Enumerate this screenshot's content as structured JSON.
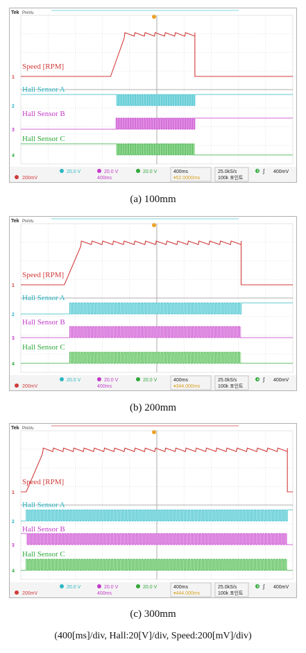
{
  "panels": [
    {
      "caption": "(a)  100mm",
      "brand": "Tek",
      "mode": "PreVu",
      "trace_labels": {
        "speed": "Speed [RPM]",
        "a": "Hall Sensor A",
        "b": "Hall Sensor B",
        "c": "Hall Sensor C"
      },
      "channel_markers": [
        "1",
        "2",
        "3",
        "4"
      ],
      "status": {
        "ch1": "200mV",
        "ch2": "20.0 V",
        "ch3": "20.0 V",
        "ch4": "20.0 V",
        "timebase": "400ms",
        "timebase2": "400ms",
        "trigger_pos": "▾52.0000ms",
        "rate": "25.0kS/s",
        "record": "100k 포인트",
        "trig_ch": "4",
        "trig_slope": "∫",
        "trig_level": "400mV"
      },
      "chart_data": {
        "type": "line",
        "time_range_divs": [
          0,
          10
        ],
        "speed": {
          "rise_start": 3.3,
          "rise_end": 3.8,
          "end": 6.4,
          "low_level": 0.1,
          "high_level": 1.0,
          "ripple_count": 7
        },
        "hall_a": {
          "start": 3.5,
          "end": 6.4,
          "pulse_count": 34,
          "pre_level": "high",
          "post_level": "high"
        },
        "hall_b": {
          "start": 3.5,
          "end": 6.4,
          "pulse_count": 34,
          "pre_level": "low",
          "post_level": "high"
        },
        "hall_c": {
          "start": 3.5,
          "end": 6.4,
          "pulse_count": 34,
          "pre_level": "high",
          "post_level": "low"
        }
      }
    },
    {
      "caption": "(b)  200mm",
      "brand": "Tek",
      "mode": "PreVu",
      "trace_labels": {
        "speed": "Speed [RPM]",
        "a": "Hall Sensor A",
        "b": "Hall Sensor B",
        "c": "Hall Sensor C"
      },
      "channel_markers": [
        "1",
        "2",
        "3",
        "4"
      ],
      "status": {
        "ch1": "200mV",
        "ch2": "20.0 V",
        "ch3": "20.0 V",
        "ch4": "20.0 V",
        "timebase": "400ms",
        "timebase2": "400ms",
        "trigger_pos": "▾344.000ms",
        "rate": "25.0kS/s",
        "record": "100k 포인트",
        "trig_ch": "4",
        "trig_slope": "∫",
        "trig_level": "400mV"
      },
      "chart_data": {
        "type": "line",
        "time_range_divs": [
          0,
          10
        ],
        "speed": {
          "rise_start": 1.6,
          "rise_end": 2.2,
          "end": 8.1,
          "low_level": 0.1,
          "high_level": 1.0,
          "ripple_count": 15
        },
        "hall_a": {
          "start": 1.8,
          "end": 8.1,
          "pulse_count": 60,
          "pre_level": "low",
          "post_level": "high"
        },
        "hall_b": {
          "start": 1.8,
          "end": 8.1,
          "pulse_count": 60,
          "pre_level": "low",
          "post_level": "low"
        },
        "hall_c": {
          "start": 1.8,
          "end": 8.1,
          "pulse_count": 60,
          "pre_level": "low",
          "post_level": "low"
        }
      }
    },
    {
      "caption": "(c)  300mm",
      "brand": "Tek",
      "mode": "PreVu",
      "trace_labels": {
        "speed": "Speed [RPM]",
        "a": "Hall Sensor A",
        "b": "Hall Sensor B",
        "c": "Hall Sensor C"
      },
      "channel_markers": [
        "1",
        "2",
        "3",
        "4"
      ],
      "status": {
        "ch1": "200mV",
        "ch2": "20.0 V",
        "ch3": "20.0 V",
        "ch4": "20.0 V",
        "timebase": "400ms",
        "timebase2": "400ms",
        "trigger_pos": "▾444.000ms",
        "rate": "25.0kS/s",
        "record": "100k 포인트",
        "trig_ch": "4",
        "trig_slope": "∫",
        "trig_level": "400mV"
      },
      "chart_data": {
        "type": "line",
        "time_range_divs": [
          0,
          10
        ],
        "speed": {
          "rise_start": 0.2,
          "rise_end": 0.8,
          "end": 9.8,
          "low_level": 0.1,
          "high_level": 1.0,
          "ripple_count": 24
        },
        "hall_a": {
          "start": 0.2,
          "end": 9.8,
          "pulse_count": 95,
          "pre_level": "low",
          "post_level": "high"
        },
        "hall_b": {
          "start": 0.2,
          "end": 9.8,
          "pulse_count": 95,
          "pre_level": "high",
          "post_level": "low"
        },
        "hall_c": {
          "start": 0.2,
          "end": 9.8,
          "pulse_count": 95,
          "pre_level": "low",
          "post_level": "low"
        }
      }
    }
  ],
  "footnote": "(400[ms]/div,  Hall:20[V]/div,  Speed:200[mV]/div)",
  "colors": {
    "speed": "#d23a3a",
    "a": "#2bb7c4",
    "b": "#c23ac8",
    "c": "#2ea83a",
    "grid": "#c8c8c8",
    "fill_a": "#bfeef2",
    "fill_b": "#f0bff2",
    "fill_c": "#c8f0c0"
  }
}
